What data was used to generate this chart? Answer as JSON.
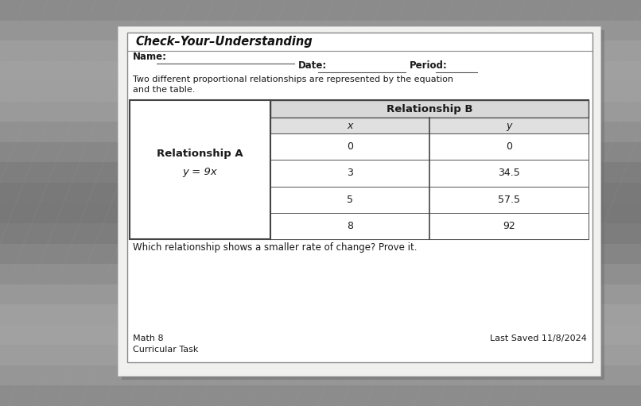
{
  "title": "Check–Your–Understanding",
  "name_label": "Name:",
  "date_label": "Date:",
  "period_label": "Period:",
  "description_1": "Two different proportional relationships are represented by the equation",
  "description_2": "and the table.",
  "rel_a_header": "Relationship A",
  "rel_a_equation": "y = 9x",
  "rel_b_header": "Relationship B",
  "table_x": [
    "x",
    "0",
    "3",
    "5",
    "8"
  ],
  "table_y": [
    "y",
    "0",
    "34.5",
    "57.5",
    "92"
  ],
  "question": "Which relationship shows a smaller rate of change? Prove it.",
  "footer_left_1": "Math 8",
  "footer_left_2": "Curricular Task",
  "footer_right": "Last Saved 11/8/2024",
  "bg_color_top": "#a0a0a0",
  "bg_color_bottom": "#909090",
  "paper_color": "#f0f0ee",
  "inner_box_color": "#ffffff",
  "table_header_color": "#d0d0d0",
  "border_color": "#555555",
  "text_color": "#1a1a1a",
  "title_color": "#111111",
  "line_color": "#777777",
  "shadow_color": "#888888"
}
